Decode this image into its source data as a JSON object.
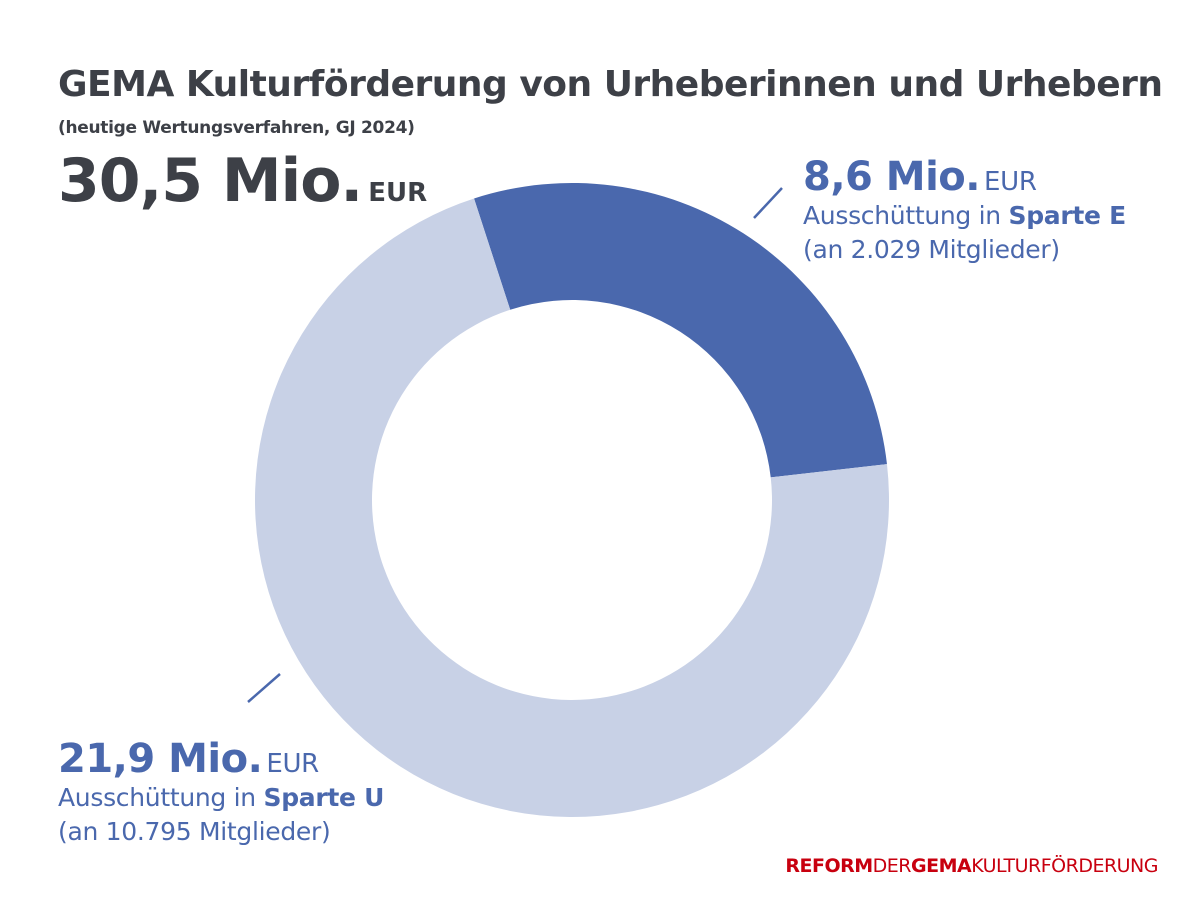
{
  "title": "GEMA Kulturförderung von Urheberinnen und Urhebern",
  "subtitle": "(heutige Wertungsverfahren, GJ 2024)",
  "total": {
    "value": "30,5 Mio.",
    "unit": "EUR"
  },
  "chart_data": {
    "type": "pie",
    "variant": "donut",
    "total": 30.5,
    "unit": "Mio. EUR",
    "slices": [
      {
        "key": "E",
        "value": 8.6,
        "value_label": "8,6 Mio.",
        "unit": "EUR",
        "line1": "Ausschüttung in ",
        "line1_bold": "Sparte E",
        "line2": "(an 2.029 Mitglieder)",
        "color": "#4a68ad"
      },
      {
        "key": "U",
        "value": 21.9,
        "value_label": "21,9 Mio.",
        "unit": "EUR",
        "line1": "Ausschüttung in ",
        "line1_bold": "Sparte U",
        "line2": "(an 10.795 Mitglieder)",
        "color": "#c8d1e6"
      }
    ]
  },
  "logo": {
    "part1": "REFORM",
    "part2": "DER",
    "part3": "GEMA",
    "part4": "KULTURFÖRDERUNG",
    "color": "#c8000f"
  },
  "colors": {
    "text": "#3d4047",
    "accent": "#4a68ad",
    "light": "#c8d1e6"
  }
}
